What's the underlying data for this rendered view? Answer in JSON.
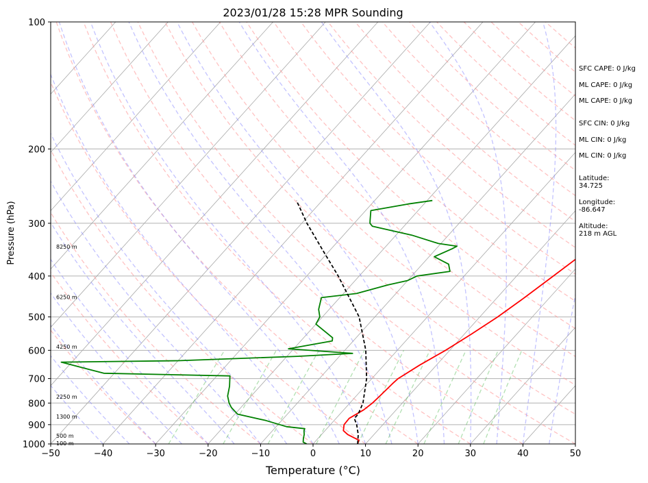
{
  "chart_data": {
    "type": "line",
    "title": "2023/01/28 15:28 MPR Sounding",
    "xlabel": "Temperature (°C)",
    "ylabel": "Pressure (hPa)",
    "xlim": [
      -50,
      50
    ],
    "ylim": [
      1000,
      100
    ],
    "y_scale": "log",
    "x_ticks": [
      -50,
      -40,
      -30,
      -20,
      -10,
      0,
      10,
      20,
      30,
      40,
      50
    ],
    "x_tick_labels": [
      "−50",
      "−40",
      "−30",
      "−20",
      "−10",
      "0",
      "10",
      "20",
      "30",
      "40",
      "50"
    ],
    "y_ticks": [
      1000,
      900,
      800,
      700,
      600,
      500,
      400,
      300,
      200,
      100
    ],
    "y_tick_labels": [
      "1000",
      "900",
      "800",
      "700",
      "600",
      "500",
      "400",
      "300",
      "200",
      "100"
    ],
    "grid": true,
    "skew_isotherms": true,
    "series": [
      {
        "kind": "temperature",
        "color": "#ff0000",
        "points": [
          [
            1000,
            8.5
          ],
          [
            980,
            8.1
          ],
          [
            950,
            5.0
          ],
          [
            930,
            3.5
          ],
          [
            900,
            2.6
          ],
          [
            870,
            2.5
          ],
          [
            830,
            3.8
          ],
          [
            800,
            4.3
          ],
          [
            770,
            4.5
          ],
          [
            720,
            4.8
          ],
          [
            700,
            5.0
          ],
          [
            650,
            6.8
          ],
          [
            600,
            9.2
          ],
          [
            550,
            11.3
          ],
          [
            500,
            13.4
          ],
          [
            450,
            15.2
          ],
          [
            400,
            17.0
          ],
          [
            350,
            19.0
          ],
          [
            300,
            21.0
          ],
          [
            280,
            22.5
          ],
          [
            265,
            23.7
          ]
        ]
      },
      {
        "kind": "dewpoint",
        "color": "#008000",
        "points": [
          [
            1000,
            -1.2
          ],
          [
            990,
            -2.2
          ],
          [
            970,
            -2.8
          ],
          [
            950,
            -3.3
          ],
          [
            930,
            -4.0
          ],
          [
            920,
            -4.2
          ],
          [
            910,
            -8.0
          ],
          [
            880,
            -13.0
          ],
          [
            850,
            -19.5
          ],
          [
            820,
            -21.8
          ],
          [
            800,
            -23.0
          ],
          [
            770,
            -24.5
          ],
          [
            730,
            -25.8
          ],
          [
            690,
            -27.5
          ],
          [
            680,
            -52.0
          ],
          [
            640,
            -62.0
          ],
          [
            635,
            -40.0
          ],
          [
            620,
            -18.0
          ],
          [
            610,
            -8.0
          ],
          [
            595,
            -21.0
          ],
          [
            570,
            -14.0
          ],
          [
            560,
            -14.5
          ],
          [
            520,
            -20.0
          ],
          [
            500,
            -20.5
          ],
          [
            480,
            -22.0
          ],
          [
            450,
            -23.5
          ],
          [
            440,
            -17.5
          ],
          [
            420,
            -13.0
          ],
          [
            410,
            -10.0
          ],
          [
            400,
            -9.0
          ],
          [
            390,
            -3.5
          ],
          [
            375,
            -5.0
          ],
          [
            360,
            -9.0
          ],
          [
            345,
            -7.0
          ],
          [
            340,
            -6.5
          ],
          [
            335,
            -10.5
          ],
          [
            320,
            -17.0
          ],
          [
            305,
            -26.0
          ],
          [
            300,
            -27.0
          ],
          [
            295,
            -27.5
          ],
          [
            280,
            -29.0
          ],
          [
            270,
            -23.0
          ],
          [
            265,
            -19.0
          ]
        ]
      },
      {
        "kind": "parcel",
        "color": "#000000",
        "points": [
          [
            1000,
            8.5
          ],
          [
            950,
            7.0
          ],
          [
            900,
            5.0
          ],
          [
            870,
            3.5
          ],
          [
            850,
            3.5
          ],
          [
            800,
            2.5
          ],
          [
            700,
            -1.0
          ],
          [
            600,
            -6.0
          ],
          [
            500,
            -13.0
          ],
          [
            400,
            -24.0
          ],
          [
            350,
            -31.0
          ],
          [
            300,
            -39.0
          ],
          [
            265,
            -44.9
          ]
        ]
      }
    ],
    "height_labels": [
      {
        "pressure": 1000,
        "text": "100 m"
      },
      {
        "pressure": 960,
        "text": "500 m"
      },
      {
        "pressure": 865,
        "text": "1300 m"
      },
      {
        "pressure": 775,
        "text": "2250 m"
      },
      {
        "pressure": 590,
        "text": "4250 m"
      },
      {
        "pressure": 450,
        "text": "6250 m"
      },
      {
        "pressure": 342,
        "text": "8250 m"
      }
    ],
    "annotations": [
      "SFC CAPE: 0 J/kg",
      "ML CAPE: 0 J/kg",
      "ML CAPE: 0 J/kg",
      "SFC CIN: 0 J/kg",
      "ML CIN: 0 J/kg",
      "ML CIN: 0 J/kg",
      "Latitude:\n34.725",
      "Longitude:\n-86.647",
      "Altitude:\n218 m AGL"
    ]
  }
}
